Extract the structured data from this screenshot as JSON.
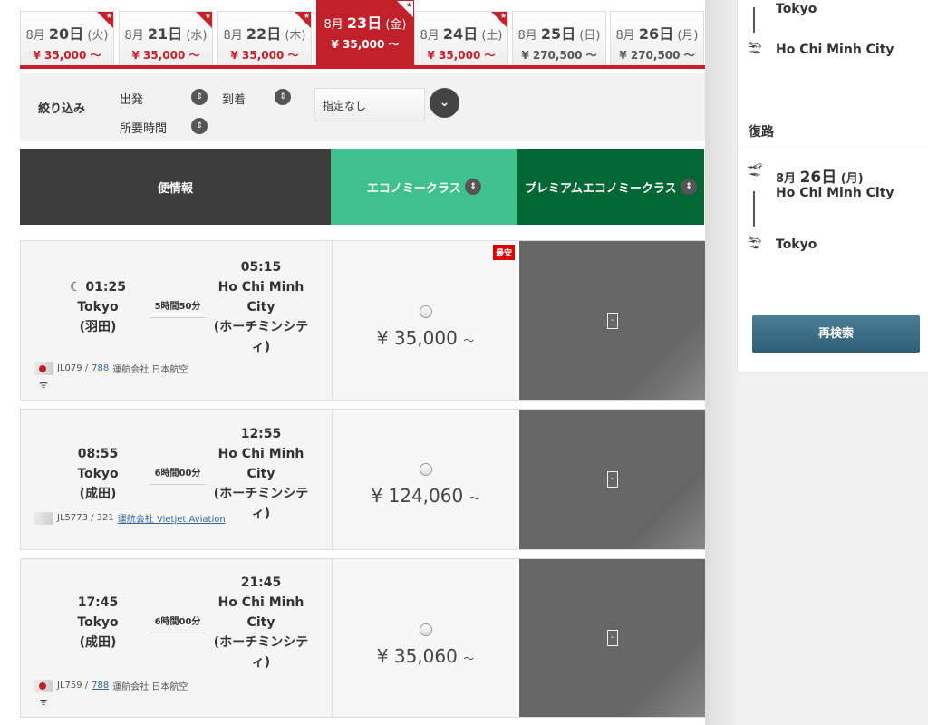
{
  "date_tabs": [
    {
      "month": "8月",
      "day": "20日",
      "weekday": "(火)",
      "price": "¥ 35,000 ～",
      "star": true,
      "active": false
    },
    {
      "month": "8月",
      "day": "21日",
      "weekday": "(水)",
      "price": "¥ 35,000 ～",
      "star": true,
      "active": false
    },
    {
      "month": "8月",
      "day": "22日",
      "weekday": "(木)",
      "price": "¥ 35,000 ～",
      "star": true,
      "active": false
    },
    {
      "month": "8月",
      "day": "23日",
      "weekday": "(金)",
      "price": "¥ 35,000 ～",
      "star": true,
      "active": true
    },
    {
      "month": "8月",
      "day": "24日",
      "weekday": "(土)",
      "price": "¥ 35,000 ～",
      "star": true,
      "active": false
    },
    {
      "month": "8月",
      "day": "25日",
      "weekday": "(日)",
      "price": "¥ 270,500 ～",
      "star": false,
      "active": false
    },
    {
      "month": "8月",
      "day": "26日",
      "weekday": "(月)",
      "price": "¥ 270,500 ～",
      "star": false,
      "active": false
    }
  ],
  "filter": {
    "label": "絞り込み",
    "departure": "出発",
    "arrival": "到着",
    "duration": "所要時間",
    "select_value": "指定なし"
  },
  "table_header": {
    "flight_info": "便情報",
    "economy": "エコノミークラス",
    "premium": "プレミアムエコノミークラス"
  },
  "flights": [
    {
      "dep_time": "01:25",
      "night": true,
      "dep_city": "Tokyo",
      "dep_airport": "(羽田)",
      "duration": "5時間50分",
      "arr_time": "05:15",
      "arr_city1": "Ho Chi Minh",
      "arr_city2": "City",
      "arr_kana1": "(ホーチミンシテ",
      "arr_kana2": "ィ)",
      "flight_no": "JL079 /",
      "aircraft": "788",
      "operator": "運航会社 日本航空",
      "operator_link": false,
      "wifi": true,
      "price": "¥ 35,000",
      "cheapest": "最安",
      "premium_mark": "-"
    },
    {
      "dep_time": "08:55",
      "night": false,
      "dep_city": "Tokyo",
      "dep_airport": "(成田)",
      "duration": "6時間00分",
      "arr_time": "12:55",
      "arr_city1": "Ho Chi Minh",
      "arr_city2": "City",
      "arr_kana1": "(ホーチミンシテ",
      "arr_kana2": "ィ)",
      "flight_no": "JL5773 / 321",
      "aircraft": "",
      "operator": "運航会社 Vietjet Aviation",
      "operator_link": true,
      "wifi": false,
      "price": "¥ 124,060",
      "premium_mark": "-"
    },
    {
      "dep_time": "17:45",
      "night": false,
      "dep_city": "Tokyo",
      "dep_airport": "(成田)",
      "duration": "6時間00分",
      "arr_time": "21:45",
      "arr_city1": "Ho Chi Minh",
      "arr_city2": "City",
      "arr_kana1": "(ホーチミンシテ",
      "arr_kana2": "ィ)",
      "flight_no": "JL759 /",
      "aircraft": "788",
      "operator": "運航会社 日本航空",
      "operator_link": false,
      "wifi": true,
      "price": "¥ 35,060",
      "premium_mark": "-"
    }
  ],
  "price_suffix": "～",
  "sidebar": {
    "outbound_dep_city": "Tokyo",
    "outbound_arr_city": "Ho Chi Minh City",
    "return_label": "復路",
    "return_month": "8月",
    "return_day": "26日",
    "return_weekday": "(月)",
    "return_dep_city": "Ho Chi Minh City",
    "return_arr_city": "Tokyo",
    "research_button": "再検索"
  },
  "colors": {
    "brand_red": "#c0202a",
    "economy": "#40bf8f",
    "premium": "#006633",
    "header_dark": "#3d3d3d",
    "button": "#3a6a80"
  }
}
